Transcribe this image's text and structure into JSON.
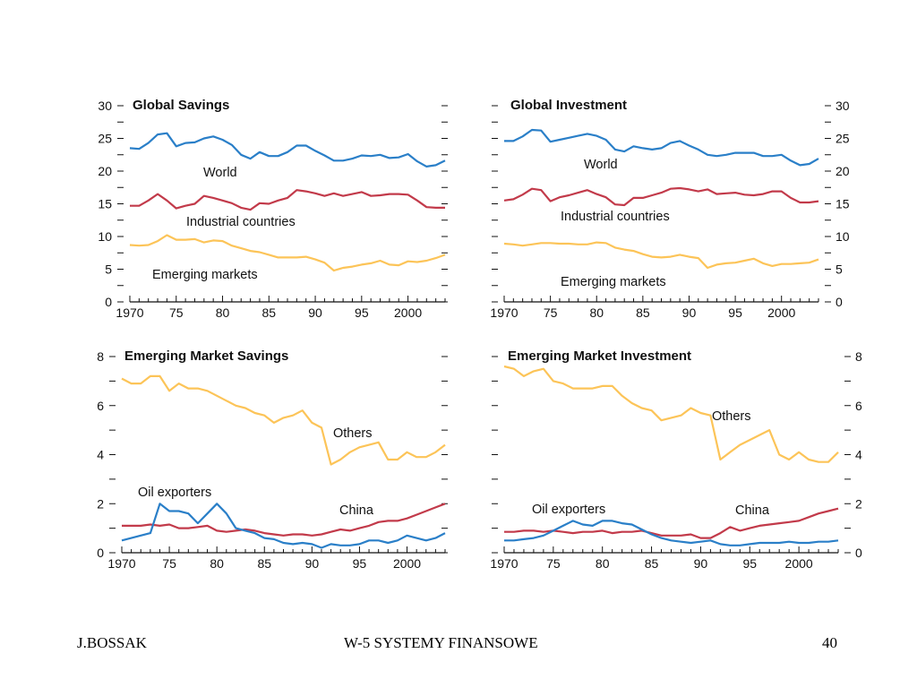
{
  "footer": {
    "left": "J.BOSSAK",
    "center": "W-5 SYSTEMY  FINANSOWE",
    "right": "40"
  },
  "colors": {
    "blue": "#2a7fc8",
    "red": "#c23a4a",
    "yellow": "#fcc458"
  },
  "chart_data": [
    {
      "type": "line",
      "title": "Global Savings",
      "x_ticks": [
        "1970",
        "75",
        "80",
        "85",
        "90",
        "95",
        "2000"
      ],
      "xlim": [
        1970,
        2004
      ],
      "ylim": [
        0,
        30
      ],
      "y_ticks": [
        0,
        5,
        10,
        15,
        20,
        25,
        30
      ],
      "y_axis_side": "left",
      "grid": false,
      "series": [
        {
          "name": "World",
          "color": "#2a7fc8",
          "x": [
            1970,
            1971,
            1972,
            1973,
            1974,
            1975,
            1976,
            1977,
            1978,
            1979,
            1980,
            1981,
            1982,
            1983,
            1984,
            1985,
            1986,
            1987,
            1988,
            1989,
            1990,
            1991,
            1992,
            1993,
            1994,
            1995,
            1996,
            1997,
            1998,
            1999,
            2000,
            2001,
            2002,
            2003,
            2004
          ],
          "y": [
            23.5,
            23.4,
            24.3,
            25.6,
            25.8,
            23.8,
            24.3,
            24.4,
            25.0,
            25.3,
            24.8,
            24.0,
            22.5,
            21.9,
            22.9,
            22.3,
            22.3,
            22.9,
            23.9,
            23.9,
            23.1,
            22.4,
            21.6,
            21.6,
            21.9,
            22.4,
            22.3,
            22.5,
            22.0,
            22.1,
            22.6,
            21.5,
            20.7,
            20.9,
            21.6
          ]
        },
        {
          "name": "Industrial countries",
          "color": "#c23a4a",
          "x": [
            1970,
            1971,
            1972,
            1973,
            1974,
            1975,
            1976,
            1977,
            1978,
            1979,
            1980,
            1981,
            1982,
            1983,
            1984,
            1985,
            1986,
            1987,
            1988,
            1989,
            1990,
            1991,
            1992,
            1993,
            1994,
            1995,
            1996,
            1997,
            1998,
            1999,
            2000,
            2001,
            2002,
            2003,
            2004
          ],
          "y": [
            14.7,
            14.7,
            15.5,
            16.5,
            15.5,
            14.3,
            14.7,
            15.0,
            16.2,
            15.9,
            15.5,
            15.1,
            14.4,
            14.1,
            15.1,
            15.0,
            15.5,
            15.9,
            17.1,
            16.9,
            16.6,
            16.2,
            16.6,
            16.2,
            16.5,
            16.8,
            16.2,
            16.3,
            16.5,
            16.5,
            16.4,
            15.5,
            14.5,
            14.4,
            14.4
          ]
        },
        {
          "name": "Emerging markets",
          "color": "#fcc458",
          "x": [
            1970,
            1971,
            1972,
            1973,
            1974,
            1975,
            1976,
            1977,
            1978,
            1979,
            1980,
            1981,
            1982,
            1983,
            1984,
            1985,
            1986,
            1987,
            1988,
            1989,
            1990,
            1991,
            1992,
            1993,
            1994,
            1995,
            1996,
            1997,
            1998,
            1999,
            2000,
            2001,
            2002,
            2003,
            2004
          ],
          "y": [
            8.7,
            8.6,
            8.7,
            9.3,
            10.2,
            9.5,
            9.5,
            9.6,
            9.1,
            9.4,
            9.3,
            8.6,
            8.2,
            7.8,
            7.6,
            7.2,
            6.8,
            6.8,
            6.8,
            6.9,
            6.5,
            6.0,
            4.8,
            5.2,
            5.4,
            5.7,
            5.9,
            6.3,
            5.7,
            5.6,
            6.2,
            6.1,
            6.3,
            6.7,
            7.2
          ]
        }
      ],
      "annotations": [
        "World",
        "Industrial countries",
        "Emerging markets"
      ]
    },
    {
      "type": "line",
      "title": "Global Investment",
      "x_ticks": [
        "1970",
        "75",
        "80",
        "85",
        "90",
        "95",
        "2000"
      ],
      "xlim": [
        1970,
        2004
      ],
      "ylim": [
        0,
        30
      ],
      "y_ticks": [
        0,
        5,
        10,
        15,
        20,
        25,
        30
      ],
      "y_axis_side": "right",
      "grid": false,
      "series": [
        {
          "name": "World",
          "color": "#2a7fc8",
          "x": [
            1970,
            1971,
            1972,
            1973,
            1974,
            1975,
            1976,
            1977,
            1978,
            1979,
            1980,
            1981,
            1982,
            1983,
            1984,
            1985,
            1986,
            1987,
            1988,
            1989,
            1990,
            1991,
            1992,
            1993,
            1994,
            1995,
            1996,
            1997,
            1998,
            1999,
            2000,
            2001,
            2002,
            2003,
            2004
          ],
          "y": [
            24.6,
            24.6,
            25.3,
            26.3,
            26.2,
            24.5,
            24.8,
            25.1,
            25.4,
            25.7,
            25.4,
            24.8,
            23.3,
            23.0,
            23.8,
            23.5,
            23.3,
            23.5,
            24.3,
            24.6,
            23.9,
            23.3,
            22.5,
            22.3,
            22.5,
            22.8,
            22.8,
            22.8,
            22.3,
            22.3,
            22.5,
            21.6,
            20.9,
            21.1,
            21.9
          ]
        },
        {
          "name": "Industrial countries",
          "color": "#c23a4a",
          "x": [
            1970,
            1971,
            1972,
            1973,
            1974,
            1975,
            1976,
            1977,
            1978,
            1979,
            1980,
            1981,
            1982,
            1983,
            1984,
            1985,
            1986,
            1987,
            1988,
            1989,
            1990,
            1991,
            1992,
            1993,
            1994,
            1995,
            1996,
            1997,
            1998,
            1999,
            2000,
            2001,
            2002,
            2003,
            2004
          ],
          "y": [
            15.5,
            15.7,
            16.4,
            17.3,
            17.1,
            15.4,
            16.0,
            16.3,
            16.7,
            17.1,
            16.5,
            16.0,
            14.9,
            14.8,
            15.9,
            15.9,
            16.3,
            16.7,
            17.3,
            17.4,
            17.2,
            16.9,
            17.2,
            16.5,
            16.6,
            16.7,
            16.4,
            16.3,
            16.5,
            16.9,
            16.9,
            15.9,
            15.2,
            15.2,
            15.4
          ]
        },
        {
          "name": "Emerging markets",
          "color": "#fcc458",
          "x": [
            1970,
            1971,
            1972,
            1973,
            1974,
            1975,
            1976,
            1977,
            1978,
            1979,
            1980,
            1981,
            1982,
            1983,
            1984,
            1985,
            1986,
            1987,
            1988,
            1989,
            1990,
            1991,
            1992,
            1993,
            1994,
            1995,
            1996,
            1997,
            1998,
            1999,
            2000,
            2001,
            2002,
            2003,
            2004
          ],
          "y": [
            8.9,
            8.8,
            8.6,
            8.8,
            9.0,
            9.0,
            8.9,
            8.9,
            8.8,
            8.8,
            9.1,
            9.0,
            8.3,
            8.0,
            7.8,
            7.3,
            6.9,
            6.8,
            6.9,
            7.2,
            6.9,
            6.7,
            5.2,
            5.7,
            5.9,
            6.0,
            6.3,
            6.6,
            5.9,
            5.5,
            5.8,
            5.8,
            5.9,
            6.0,
            6.5
          ]
        }
      ],
      "annotations": [
        "World",
        "Industrial countries",
        "Emerging markets"
      ]
    },
    {
      "type": "line",
      "title": "Emerging Market Savings",
      "x_ticks": [
        "1970",
        "75",
        "80",
        "85",
        "90",
        "95",
        "2000"
      ],
      "xlim": [
        1970,
        2004
      ],
      "ylim": [
        0,
        8
      ],
      "y_ticks": [
        0,
        2,
        4,
        6,
        8
      ],
      "y_axis_side": "left",
      "grid": false,
      "series": [
        {
          "name": "Others",
          "color": "#fcc458",
          "x": [
            1970,
            1971,
            1972,
            1973,
            1974,
            1975,
            1976,
            1977,
            1978,
            1979,
            1980,
            1981,
            1982,
            1983,
            1984,
            1985,
            1986,
            1987,
            1988,
            1989,
            1990,
            1991,
            1992,
            1993,
            1994,
            1995,
            1996,
            1997,
            1998,
            1999,
            2000,
            2001,
            2002,
            2003,
            2004
          ],
          "y": [
            7.1,
            6.9,
            6.9,
            7.2,
            7.2,
            6.6,
            6.9,
            6.7,
            6.7,
            6.6,
            6.4,
            6.2,
            6.0,
            5.9,
            5.7,
            5.6,
            5.3,
            5.5,
            5.6,
            5.8,
            5.3,
            5.1,
            3.6,
            3.8,
            4.1,
            4.3,
            4.4,
            4.5,
            3.8,
            3.8,
            4.1,
            3.9,
            3.9,
            4.1,
            4.4
          ]
        },
        {
          "name": "China",
          "color": "#c23a4a",
          "x": [
            1970,
            1971,
            1972,
            1973,
            1974,
            1975,
            1976,
            1977,
            1978,
            1979,
            1980,
            1981,
            1982,
            1983,
            1984,
            1985,
            1986,
            1987,
            1988,
            1989,
            1990,
            1991,
            1992,
            1993,
            1994,
            1995,
            1996,
            1997,
            1998,
            1999,
            2000,
            2001,
            2002,
            2003,
            2004
          ],
          "y": [
            1.1,
            1.1,
            1.1,
            1.15,
            1.1,
            1.15,
            1.0,
            1.0,
            1.05,
            1.1,
            0.9,
            0.85,
            0.9,
            0.95,
            0.9,
            0.8,
            0.75,
            0.7,
            0.75,
            0.75,
            0.7,
            0.75,
            0.85,
            0.95,
            0.9,
            1.0,
            1.1,
            1.25,
            1.3,
            1.3,
            1.4,
            1.55,
            1.7,
            1.85,
            2.0
          ]
        },
        {
          "name": "Oil exporters",
          "color": "#2a7fc8",
          "x": [
            1970,
            1971,
            1972,
            1973,
            1974,
            1975,
            1976,
            1977,
            1978,
            1979,
            1980,
            1981,
            1982,
            1983,
            1984,
            1985,
            1986,
            1987,
            1988,
            1989,
            1990,
            1991,
            1992,
            1993,
            1994,
            1995,
            1996,
            1997,
            1998,
            1999,
            2000,
            2001,
            2002,
            2003,
            2004
          ],
          "y": [
            0.5,
            0.6,
            0.7,
            0.8,
            2.0,
            1.7,
            1.7,
            1.6,
            1.2,
            1.6,
            2.0,
            1.6,
            1.0,
            0.9,
            0.8,
            0.6,
            0.55,
            0.4,
            0.35,
            0.4,
            0.35,
            0.2,
            0.35,
            0.3,
            0.3,
            0.35,
            0.5,
            0.5,
            0.4,
            0.5,
            0.7,
            0.6,
            0.5,
            0.6,
            0.8
          ]
        }
      ],
      "annotations": [
        "Others",
        "Oil exporters",
        "China"
      ]
    },
    {
      "type": "line",
      "title": "Emerging Market Investment",
      "x_ticks": [
        "1970",
        "75",
        "80",
        "85",
        "90",
        "95",
        "2000"
      ],
      "xlim": [
        1970,
        2004
      ],
      "ylim": [
        0,
        8
      ],
      "y_ticks": [
        0,
        2,
        4,
        6,
        8
      ],
      "y_axis_side": "right",
      "grid": false,
      "series": [
        {
          "name": "Others",
          "color": "#fcc458",
          "x": [
            1970,
            1971,
            1972,
            1973,
            1974,
            1975,
            1976,
            1977,
            1978,
            1979,
            1980,
            1981,
            1982,
            1983,
            1984,
            1985,
            1986,
            1987,
            1988,
            1989,
            1990,
            1991,
            1992,
            1993,
            1994,
            1995,
            1996,
            1997,
            1998,
            1999,
            2000,
            2001,
            2002,
            2003,
            2004
          ],
          "y": [
            7.6,
            7.5,
            7.2,
            7.4,
            7.5,
            7.0,
            6.9,
            6.7,
            6.7,
            6.7,
            6.8,
            6.8,
            6.4,
            6.1,
            5.9,
            5.8,
            5.4,
            5.5,
            5.6,
            5.9,
            5.7,
            5.6,
            3.8,
            4.1,
            4.4,
            4.6,
            4.8,
            5.0,
            4.0,
            3.8,
            4.1,
            3.8,
            3.7,
            3.7,
            4.1
          ]
        },
        {
          "name": "China",
          "color": "#c23a4a",
          "x": [
            1970,
            1971,
            1972,
            1973,
            1974,
            1975,
            1976,
            1977,
            1978,
            1979,
            1980,
            1981,
            1982,
            1983,
            1984,
            1985,
            1986,
            1987,
            1988,
            1989,
            1990,
            1991,
            1992,
            1993,
            1994,
            1995,
            1996,
            1997,
            1998,
            1999,
            2000,
            2001,
            2002,
            2003,
            2004
          ],
          "y": [
            0.85,
            0.85,
            0.9,
            0.9,
            0.85,
            0.9,
            0.85,
            0.8,
            0.85,
            0.85,
            0.9,
            0.8,
            0.85,
            0.85,
            0.9,
            0.8,
            0.7,
            0.7,
            0.7,
            0.75,
            0.6,
            0.6,
            0.8,
            1.05,
            0.9,
            1.0,
            1.1,
            1.15,
            1.2,
            1.25,
            1.3,
            1.45,
            1.6,
            1.7,
            1.8
          ]
        },
        {
          "name": "Oil exporters",
          "color": "#2a7fc8",
          "x": [
            1970,
            1971,
            1972,
            1973,
            1974,
            1975,
            1976,
            1977,
            1978,
            1979,
            1980,
            1981,
            1982,
            1983,
            1984,
            1985,
            1986,
            1987,
            1988,
            1989,
            1990,
            1991,
            1992,
            1993,
            1994,
            1995,
            1996,
            1997,
            1998,
            1999,
            2000,
            2001,
            2002,
            2003,
            2004
          ],
          "y": [
            0.5,
            0.5,
            0.55,
            0.6,
            0.7,
            0.9,
            1.1,
            1.3,
            1.15,
            1.1,
            1.3,
            1.3,
            1.2,
            1.15,
            0.95,
            0.75,
            0.6,
            0.5,
            0.45,
            0.4,
            0.45,
            0.5,
            0.35,
            0.3,
            0.3,
            0.35,
            0.4,
            0.4,
            0.4,
            0.45,
            0.4,
            0.4,
            0.45,
            0.45,
            0.5
          ]
        }
      ],
      "annotations": [
        "Others",
        "Oil exporters",
        "China"
      ]
    }
  ]
}
